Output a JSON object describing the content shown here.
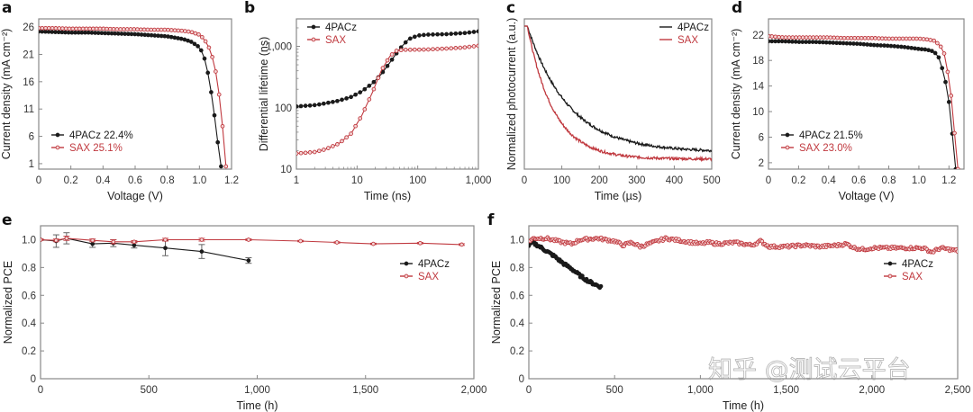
{
  "colors": {
    "pacz": "#1a1a1a",
    "sax": "#c0393f",
    "axis": "#888888",
    "text": "#333333"
  },
  "watermark": "知乎 @测试云平台",
  "chart_data": [
    {
      "id": "a",
      "panel_label": "a",
      "type": "line",
      "xlabel": "Voltage (V)",
      "ylabel": "Current density (mA cm⁻²)",
      "xlim": [
        0,
        1.2
      ],
      "ylim": [
        0,
        27.5
      ],
      "xticks": [
        0,
        0.2,
        0.4,
        0.6,
        0.8,
        1.0,
        1.2
      ],
      "xtick_labels": [
        "0",
        "0.2",
        "0.4",
        "0.6",
        "0.8",
        "1.0",
        "1.2"
      ],
      "yticks": [
        1,
        6,
        11,
        16,
        21,
        26
      ],
      "ytick_labels": [
        "1",
        "6",
        "11",
        "16",
        "21",
        "26"
      ],
      "legend_position": "bottom-left",
      "series": [
        {
          "name": "4PACz",
          "legend": "4PACz  22.4%",
          "pce": "22.4%",
          "x": [
            0,
            0.1,
            0.2,
            0.3,
            0.4,
            0.5,
            0.6,
            0.7,
            0.8,
            0.9,
            0.95,
            1.0,
            1.02,
            1.04,
            1.06,
            1.08,
            1.1,
            1.12,
            1.135
          ],
          "y": [
            25.2,
            25.1,
            25.0,
            25.0,
            24.9,
            24.8,
            24.7,
            24.5,
            24.3,
            23.8,
            23.3,
            22.3,
            21.3,
            19.5,
            16.5,
            12.8,
            8.5,
            3.5,
            0.5
          ]
        },
        {
          "name": "SAX",
          "legend": "SAX  25.1%",
          "pce": "25.1%",
          "x": [
            0,
            0.1,
            0.2,
            0.3,
            0.4,
            0.5,
            0.6,
            0.7,
            0.8,
            0.9,
            0.95,
            1.0,
            1.03,
            1.06,
            1.09,
            1.11,
            1.13,
            1.15,
            1.165
          ],
          "y": [
            25.8,
            25.8,
            25.7,
            25.7,
            25.7,
            25.6,
            25.6,
            25.5,
            25.5,
            25.3,
            25.1,
            24.6,
            23.8,
            22.2,
            19.7,
            16.5,
            12.0,
            6.0,
            0.5
          ]
        }
      ]
    },
    {
      "id": "b",
      "panel_label": "b",
      "type": "line",
      "xscale": "log",
      "yscale": "log",
      "xlabel": "Time (ns)",
      "ylabel": "Differential lifetime (ns)",
      "xlim": [
        1,
        1000
      ],
      "ylim": [
        10,
        2800
      ],
      "xticks": [
        1,
        10,
        100,
        1000
      ],
      "xtick_labels": [
        "1",
        "10",
        "100",
        "1,000"
      ],
      "yticks": [
        10,
        100,
        1000
      ],
      "ytick_labels": [
        "10",
        "100",
        "1,000"
      ],
      "legend_position": "top-left",
      "series": [
        {
          "name": "4PACz",
          "legend": "4PACz",
          "x": [
            1,
            2,
            3,
            5,
            8,
            12,
            18,
            25,
            35,
            50,
            70,
            100,
            150,
            300,
            600,
            1000
          ],
          "y": [
            105,
            110,
            118,
            130,
            150,
            185,
            250,
            350,
            550,
            900,
            1300,
            1500,
            1550,
            1580,
            1650,
            1750
          ]
        },
        {
          "name": "SAX",
          "legend": "SAX",
          "x": [
            1,
            2,
            3,
            5,
            8,
            12,
            18,
            25,
            35,
            45,
            60,
            80,
            150,
            300,
            600,
            1000
          ],
          "y": [
            18,
            19,
            21,
            26,
            38,
            75,
            180,
            400,
            700,
            850,
            880,
            880,
            890,
            920,
            960,
            1020
          ]
        }
      ]
    },
    {
      "id": "c",
      "panel_label": "c",
      "type": "line",
      "xlabel": "Time (µs)",
      "ylabel": "Normalized photocurrent (a.u.)",
      "xlim": [
        0,
        500
      ],
      "ylim": [
        0,
        1.05
      ],
      "xticks": [
        0,
        100,
        200,
        300,
        400,
        500
      ],
      "xtick_labels": [
        "0",
        "100",
        "200",
        "300",
        "400",
        "500"
      ],
      "yticks": [],
      "ytick_labels": [],
      "legend_position": "top-right",
      "series": [
        {
          "name": "4PACz",
          "legend": "4PACz",
          "decay": {
            "tau": 110,
            "offset": 0.12,
            "start": 1.0,
            "delay": 8
          }
        },
        {
          "name": "SAX",
          "legend": "SAX",
          "decay": {
            "tau": 70,
            "offset": 0.07,
            "start": 1.0,
            "delay": 8
          }
        }
      ]
    },
    {
      "id": "d",
      "panel_label": "d",
      "type": "line",
      "xlabel": "Voltage (V)",
      "ylabel": "Current density (mA cm⁻²)",
      "xlim": [
        0,
        1.3
      ],
      "ylim": [
        1,
        24.5
      ],
      "xticks": [
        0,
        0.2,
        0.4,
        0.6,
        0.8,
        1.0,
        1.2
      ],
      "xtick_labels": [
        "0",
        "0.2",
        "0.4",
        "0.6",
        "0.8",
        "1.0",
        "1.2"
      ],
      "yticks": [
        2,
        6,
        10,
        14,
        18,
        22
      ],
      "ytick_labels": [
        "2",
        "6",
        "10",
        "14",
        "18",
        "22"
      ],
      "legend_position": "bottom-left",
      "series": [
        {
          "name": "4PACz",
          "legend": "4PACz  21.5%",
          "pce": "21.5%",
          "x": [
            0,
            0.1,
            0.2,
            0.3,
            0.4,
            0.5,
            0.6,
            0.7,
            0.8,
            0.9,
            1.0,
            1.05,
            1.1,
            1.13,
            1.15,
            1.17,
            1.19,
            1.21,
            1.23,
            1.245
          ],
          "y": [
            21.0,
            21.0,
            20.9,
            20.9,
            20.8,
            20.7,
            20.6,
            20.4,
            20.3,
            20.1,
            19.8,
            19.7,
            19.4,
            18.6,
            17.2,
            15.4,
            13.2,
            9.7,
            4.6,
            1.0
          ]
        },
        {
          "name": "SAX",
          "legend": "SAX  23.0%",
          "pce": "23.0%",
          "x": [
            0,
            0.1,
            0.2,
            0.3,
            0.4,
            0.5,
            0.6,
            0.7,
            0.8,
            0.9,
            1.0,
            1.05,
            1.1,
            1.14,
            1.17,
            1.19,
            1.21,
            1.23,
            1.25,
            1.26
          ],
          "y": [
            21.8,
            21.6,
            21.6,
            21.6,
            21.6,
            21.5,
            21.5,
            21.5,
            21.4,
            21.4,
            21.4,
            21.3,
            21.1,
            20.4,
            19.0,
            16.4,
            13.4,
            9.0,
            2.3,
            1.0
          ]
        }
      ]
    },
    {
      "id": "e",
      "panel_label": "e",
      "type": "line",
      "error_bars": true,
      "xlabel": "Time (h)",
      "ylabel": "Normalized PCE",
      "xlim": [
        0,
        2000
      ],
      "ylim": [
        0,
        1.1
      ],
      "xticks": [
        0,
        500,
        1000,
        1500,
        2000
      ],
      "xtick_labels": [
        "0",
        "500",
        "1,000",
        "1,500",
        "2,000"
      ],
      "yticks": [
        0,
        0.2,
        0.4,
        0.6,
        0.8,
        1.0
      ],
      "ytick_labels": [
        "0",
        "0.2",
        "0.4",
        "0.6",
        "0.8",
        "1.0"
      ],
      "legend_position": "right",
      "series": [
        {
          "name": "4PACz",
          "legend": "4PACz",
          "x": [
            0,
            72,
            120,
            240,
            336,
            432,
            576,
            744,
            960
          ],
          "y": [
            1.0,
            0.99,
            1.01,
            0.97,
            0.975,
            0.96,
            0.94,
            0.915,
            0.85
          ],
          "err": [
            0.005,
            0.045,
            0.04,
            0.025,
            0.025,
            0.02,
            0.055,
            0.05,
            0.02
          ]
        },
        {
          "name": "SAX",
          "legend": "SAX",
          "x": [
            0,
            72,
            120,
            240,
            336,
            432,
            576,
            744,
            960,
            1200,
            1368,
            1536,
            1752,
            1944
          ],
          "y": [
            1.0,
            0.995,
            1.01,
            0.995,
            0.985,
            0.985,
            1.0,
            1.0,
            1.0,
            0.99,
            0.98,
            0.97,
            0.975,
            0.965
          ],
          "err": [
            0.005,
            0.01,
            0.015,
            0.01,
            0.015,
            0.008,
            0.01,
            0.01,
            0.006,
            0.005,
            0.005,
            0.005,
            0.005,
            0.006
          ]
        }
      ]
    },
    {
      "id": "f",
      "panel_label": "f",
      "type": "scatter",
      "xlabel": "Time (h)",
      "ylabel": "Normalized PCE",
      "xlim": [
        0,
        2500
      ],
      "ylim": [
        0,
        1.1
      ],
      "xticks": [
        0,
        500,
        1000,
        1500,
        2000,
        2500
      ],
      "xtick_labels": [
        "0",
        "500",
        "1,000",
        "1,500",
        "2,000",
        "2,500"
      ],
      "yticks": [
        0,
        0.2,
        0.4,
        0.6,
        0.8,
        1.0
      ],
      "ytick_labels": [
        "0",
        "0.2",
        "0.4",
        "0.6",
        "0.8",
        "1.0"
      ],
      "legend_position": "right",
      "series": [
        {
          "name": "4PACz",
          "legend": "4PACz",
          "x": [
            0,
            20,
            50,
            100,
            150,
            200,
            250,
            300,
            350,
            400,
            420
          ],
          "y": [
            0.96,
            0.98,
            0.96,
            0.92,
            0.88,
            0.83,
            0.79,
            0.74,
            0.7,
            0.67,
            0.66
          ]
        },
        {
          "name": "SAX",
          "legend": "SAX",
          "x": [
            0,
            30,
            100,
            200,
            250,
            300,
            400,
            500,
            550,
            600,
            650,
            700,
            800,
            900,
            1000,
            1050,
            1100,
            1200,
            1300,
            1350,
            1400,
            1500,
            1600,
            1700,
            1800,
            1850,
            1900,
            1950,
            2000,
            2100,
            2200,
            2300,
            2350,
            2400,
            2500
          ],
          "y": [
            0.99,
            1.01,
            1.01,
            0.98,
            0.97,
            1.0,
            1.01,
            0.99,
            0.96,
            0.98,
            0.95,
            0.97,
            1.01,
            0.99,
            0.97,
            0.98,
            0.97,
            0.98,
            0.96,
            0.99,
            0.95,
            0.95,
            0.96,
            0.95,
            0.96,
            0.97,
            0.94,
            0.93,
            0.94,
            0.94,
            0.94,
            0.94,
            0.91,
            0.94,
            0.92
          ]
        }
      ]
    }
  ]
}
